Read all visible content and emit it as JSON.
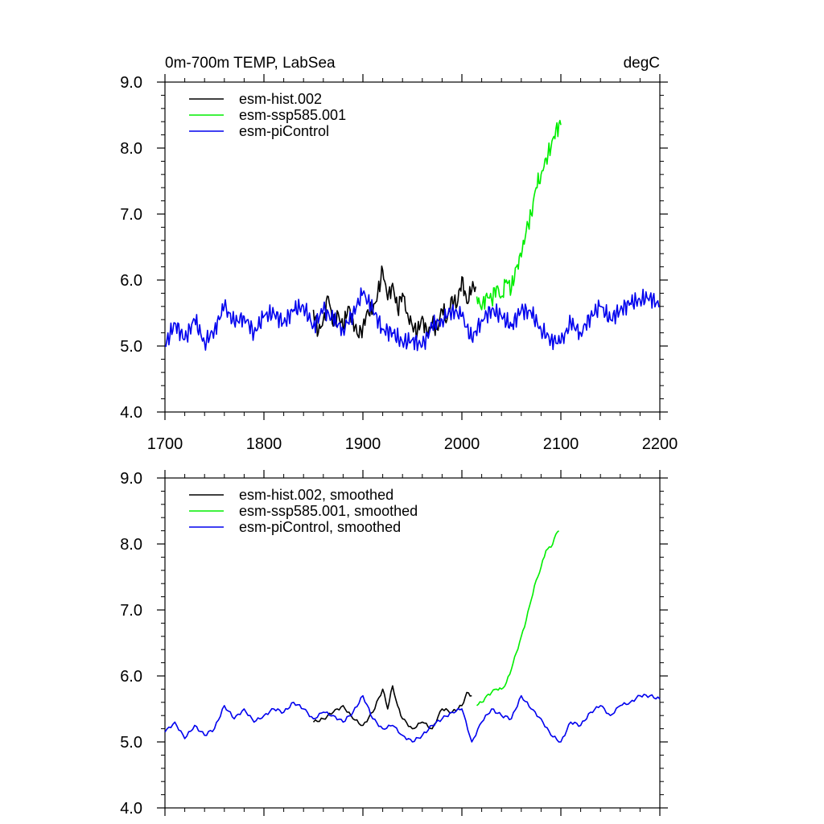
{
  "chart_data": [
    {
      "type": "line",
      "title": "0m-700m TEMP, LabSea",
      "units": "degC",
      "xlim": [
        1700,
        2200
      ],
      "ylim": [
        4.0,
        9.0
      ],
      "x_ticks": [
        1700,
        1800,
        1900,
        2000,
        2100,
        2200
      ],
      "x_tick_labels": [
        "1700",
        "1800",
        "1900",
        "2000",
        "2100",
        "2200"
      ],
      "y_ticks": [
        4,
        5,
        6,
        7,
        8,
        9
      ],
      "y_tick_labels": [
        "4.0",
        "5.0",
        "6.0",
        "7.0",
        "8.0",
        "9.0"
      ],
      "legend_position": "top-left",
      "series": [
        {
          "name": "esm-hist.002",
          "color": "#000000",
          "x": [
            1850,
            1855,
            1860,
            1865,
            1870,
            1875,
            1880,
            1885,
            1890,
            1895,
            1900,
            1905,
            1910,
            1915,
            1920,
            1925,
            1930,
            1935,
            1940,
            1945,
            1950,
            1955,
            1960,
            1965,
            1970,
            1975,
            1980,
            1985,
            1990,
            1995,
            2000,
            2005,
            2010,
            2014
          ],
          "y": [
            5.55,
            5.2,
            5.4,
            5.75,
            5.3,
            5.5,
            5.25,
            5.6,
            5.4,
            5.15,
            5.3,
            5.55,
            5.5,
            5.8,
            6.15,
            5.7,
            5.95,
            5.55,
            5.8,
            5.5,
            5.3,
            5.2,
            5.45,
            5.15,
            5.35,
            5.25,
            5.55,
            5.4,
            5.75,
            5.6,
            6.05,
            5.65,
            5.85,
            5.9
          ]
        },
        {
          "name": "esm-ssp585.001",
          "color": "#00ee00",
          "x": [
            2015,
            2020,
            2025,
            2030,
            2035,
            2040,
            2045,
            2050,
            2055,
            2060,
            2065,
            2070,
            2075,
            2080,
            2085,
            2090,
            2095,
            2100
          ],
          "y": [
            5.75,
            5.55,
            5.8,
            5.7,
            5.9,
            5.75,
            6.0,
            5.85,
            6.2,
            6.35,
            6.75,
            7.0,
            7.4,
            7.6,
            7.85,
            8.0,
            8.3,
            8.35
          ]
        },
        {
          "name": "esm-piControl",
          "color": "#0000ee",
          "x": [
            1700,
            1710,
            1720,
            1730,
            1740,
            1750,
            1760,
            1770,
            1780,
            1790,
            1800,
            1810,
            1820,
            1830,
            1840,
            1850,
            1860,
            1870,
            1880,
            1890,
            1900,
            1910,
            1920,
            1930,
            1940,
            1950,
            1960,
            1970,
            1980,
            1990,
            2000,
            2010,
            2020,
            2030,
            2040,
            2050,
            2060,
            2070,
            2080,
            2090,
            2100,
            2110,
            2120,
            2130,
            2140,
            2150,
            2160,
            2170,
            2180,
            2190,
            2200
          ],
          "y": [
            5.0,
            5.35,
            5.1,
            5.4,
            5.05,
            5.25,
            5.6,
            5.35,
            5.45,
            5.2,
            5.45,
            5.5,
            5.35,
            5.55,
            5.6,
            5.3,
            5.55,
            5.4,
            5.25,
            5.5,
            5.8,
            5.55,
            5.25,
            5.2,
            5.05,
            5.1,
            5.0,
            5.3,
            5.4,
            5.55,
            5.45,
            5.1,
            5.4,
            5.55,
            5.45,
            5.3,
            5.55,
            5.5,
            5.25,
            5.1,
            5.05,
            5.35,
            5.2,
            5.45,
            5.6,
            5.4,
            5.55,
            5.65,
            5.7,
            5.75,
            5.6
          ]
        }
      ]
    },
    {
      "type": "line",
      "title": "",
      "xlim": [
        1700,
        2200
      ],
      "ylim": [
        4.0,
        9.0
      ],
      "x_ticks": [
        1700,
        1800,
        1900,
        2000,
        2100,
        2200
      ],
      "y_ticks": [
        4,
        5,
        6,
        7,
        8,
        9
      ],
      "y_tick_labels": [
        "4.0",
        "5.0",
        "6.0",
        "7.0",
        "8.0",
        "9.0"
      ],
      "legend_position": "top-left",
      "series": [
        {
          "name": "esm-hist.002, smoothed",
          "color": "#000000",
          "x": [
            1850,
            1860,
            1870,
            1880,
            1890,
            1900,
            1910,
            1920,
            1925,
            1930,
            1935,
            1940,
            1950,
            1960,
            1970,
            1980,
            1990,
            2000,
            2005,
            2010
          ],
          "y": [
            5.3,
            5.35,
            5.45,
            5.55,
            5.35,
            5.25,
            5.45,
            5.8,
            5.5,
            5.85,
            5.55,
            5.35,
            5.2,
            5.3,
            5.2,
            5.5,
            5.45,
            5.55,
            5.75,
            5.7
          ]
        },
        {
          "name": "esm-ssp585.001, smoothed",
          "color": "#00ee00",
          "x": [
            2015,
            2020,
            2025,
            2030,
            2035,
            2040,
            2045,
            2050,
            2055,
            2060,
            2065,
            2070,
            2075,
            2080,
            2085,
            2090,
            2095,
            2098
          ],
          "y": [
            5.55,
            5.6,
            5.7,
            5.75,
            5.8,
            5.8,
            5.9,
            6.1,
            6.35,
            6.6,
            6.85,
            7.15,
            7.45,
            7.65,
            7.9,
            7.95,
            8.15,
            8.2
          ]
        },
        {
          "name": "esm-piControl, smoothed",
          "color": "#0000ee",
          "x": [
            1700,
            1710,
            1720,
            1730,
            1740,
            1750,
            1760,
            1770,
            1780,
            1790,
            1800,
            1810,
            1820,
            1830,
            1840,
            1850,
            1860,
            1870,
            1880,
            1890,
            1900,
            1910,
            1920,
            1930,
            1940,
            1950,
            1960,
            1970,
            1980,
            1990,
            2000,
            2010,
            2020,
            2030,
            2040,
            2050,
            2060,
            2070,
            2080,
            2090,
            2100,
            2110,
            2120,
            2130,
            2140,
            2150,
            2160,
            2170,
            2180,
            2190,
            2200
          ],
          "y": [
            5.15,
            5.3,
            5.05,
            5.25,
            5.1,
            5.2,
            5.55,
            5.35,
            5.5,
            5.3,
            5.4,
            5.5,
            5.45,
            5.6,
            5.5,
            5.35,
            5.45,
            5.4,
            5.3,
            5.45,
            5.7,
            5.35,
            5.2,
            5.25,
            5.1,
            5.0,
            5.1,
            5.25,
            5.35,
            5.45,
            5.5,
            5.0,
            5.3,
            5.5,
            5.4,
            5.35,
            5.7,
            5.5,
            5.35,
            5.1,
            5.0,
            5.3,
            5.25,
            5.45,
            5.55,
            5.4,
            5.55,
            5.6,
            5.7,
            5.7,
            5.65
          ]
        }
      ]
    }
  ]
}
